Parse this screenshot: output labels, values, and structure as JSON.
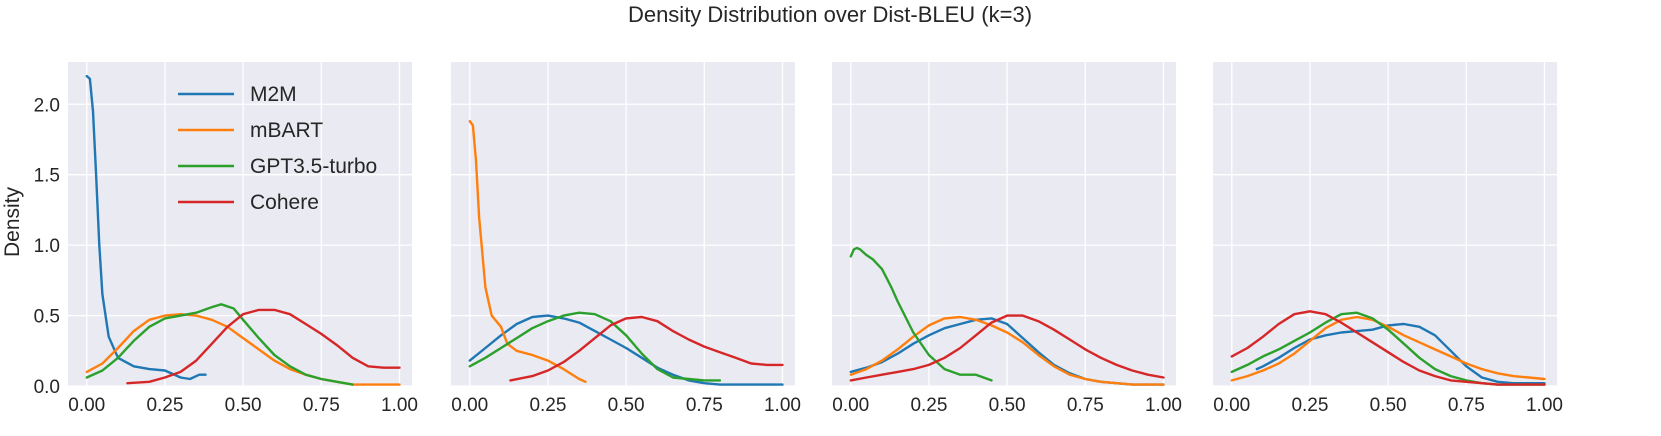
{
  "chart_data": {
    "type": "line",
    "title": "Density Distribution over Dist-BLEU (k=3)",
    "ylabel": "Density",
    "xlabel": "",
    "xlim": [
      -0.06,
      1.04
    ],
    "ylim": [
      0,
      2.3
    ],
    "xticks": [
      "0.00",
      "0.25",
      "0.50",
      "0.75",
      "1.00"
    ],
    "yticks": [
      "0.0",
      "0.5",
      "1.0",
      "1.5",
      "2.0"
    ],
    "xtick_values": [
      0,
      0.25,
      0.5,
      0.75,
      1.0
    ],
    "ytick_values": [
      0,
      0.5,
      1.0,
      1.5,
      2.0
    ],
    "grid": true,
    "legend_position": "top-left",
    "legend": [
      {
        "name": "M2M",
        "color": "#1f77b4"
      },
      {
        "name": "mBART",
        "color": "#ff7f0e"
      },
      {
        "name": "GPT3.5-turbo",
        "color": "#2ca02c"
      },
      {
        "name": "Cohere",
        "color": "#d62728"
      }
    ],
    "panels": [
      {
        "series": [
          {
            "name": "M2M",
            "color": "#1f77b4",
            "x": [
              0.0,
              0.01,
              0.02,
              0.03,
              0.04,
              0.05,
              0.07,
              0.1,
              0.15,
              0.2,
              0.25,
              0.3,
              0.33,
              0.36,
              0.38
            ],
            "y": [
              2.2,
              2.18,
              1.95,
              1.5,
              1.0,
              0.65,
              0.35,
              0.2,
              0.14,
              0.12,
              0.11,
              0.06,
              0.05,
              0.08,
              0.08
            ]
          },
          {
            "name": "mBART",
            "color": "#ff7f0e",
            "x": [
              0.0,
              0.05,
              0.1,
              0.15,
              0.2,
              0.25,
              0.3,
              0.35,
              0.4,
              0.45,
              0.5,
              0.55,
              0.6,
              0.65,
              0.7,
              0.75,
              0.8,
              0.85,
              0.9,
              0.95,
              1.0
            ],
            "y": [
              0.1,
              0.16,
              0.27,
              0.39,
              0.47,
              0.5,
              0.51,
              0.5,
              0.47,
              0.42,
              0.34,
              0.26,
              0.18,
              0.12,
              0.08,
              0.05,
              0.03,
              0.01,
              0.01,
              0.01,
              0.01
            ]
          },
          {
            "name": "GPT3.5-turbo",
            "color": "#2ca02c",
            "x": [
              0.0,
              0.05,
              0.1,
              0.15,
              0.2,
              0.25,
              0.3,
              0.35,
              0.4,
              0.43,
              0.47,
              0.5,
              0.55,
              0.6,
              0.65,
              0.7,
              0.75,
              0.8,
              0.85
            ],
            "y": [
              0.06,
              0.11,
              0.2,
              0.32,
              0.42,
              0.48,
              0.5,
              0.52,
              0.56,
              0.58,
              0.55,
              0.47,
              0.34,
              0.22,
              0.14,
              0.08,
              0.05,
              0.03,
              0.01
            ]
          },
          {
            "name": "Cohere",
            "color": "#d62728",
            "x": [
              0.13,
              0.2,
              0.25,
              0.3,
              0.35,
              0.4,
              0.45,
              0.5,
              0.55,
              0.6,
              0.65,
              0.7,
              0.75,
              0.8,
              0.85,
              0.9,
              0.95,
              1.0
            ],
            "y": [
              0.02,
              0.03,
              0.06,
              0.1,
              0.18,
              0.3,
              0.42,
              0.51,
              0.54,
              0.54,
              0.51,
              0.44,
              0.37,
              0.29,
              0.2,
              0.14,
              0.13,
              0.13
            ]
          }
        ]
      },
      {
        "series": [
          {
            "name": "M2M",
            "color": "#1f77b4",
            "x": [
              0.0,
              0.05,
              0.1,
              0.15,
              0.2,
              0.25,
              0.3,
              0.35,
              0.4,
              0.45,
              0.5,
              0.55,
              0.6,
              0.65,
              0.7,
              0.75,
              0.8,
              0.85,
              0.9,
              0.95,
              1.0
            ],
            "y": [
              0.18,
              0.27,
              0.36,
              0.44,
              0.49,
              0.5,
              0.48,
              0.45,
              0.39,
              0.33,
              0.27,
              0.2,
              0.13,
              0.08,
              0.04,
              0.02,
              0.01,
              0.01,
              0.01,
              0.01,
              0.01
            ]
          },
          {
            "name": "mBART",
            "color": "#ff7f0e",
            "x": [
              0.0,
              0.01,
              0.02,
              0.03,
              0.05,
              0.07,
              0.1,
              0.12,
              0.15,
              0.2,
              0.25,
              0.3,
              0.35,
              0.37
            ],
            "y": [
              1.88,
              1.85,
              1.6,
              1.2,
              0.7,
              0.5,
              0.42,
              0.3,
              0.25,
              0.22,
              0.18,
              0.12,
              0.05,
              0.03
            ]
          },
          {
            "name": "GPT3.5-turbo",
            "color": "#2ca02c",
            "x": [
              0.0,
              0.05,
              0.1,
              0.15,
              0.2,
              0.25,
              0.3,
              0.35,
              0.4,
              0.45,
              0.5,
              0.55,
              0.6,
              0.65,
              0.7,
              0.75,
              0.8
            ],
            "y": [
              0.14,
              0.2,
              0.27,
              0.34,
              0.41,
              0.46,
              0.5,
              0.52,
              0.51,
              0.46,
              0.36,
              0.23,
              0.12,
              0.06,
              0.05,
              0.04,
              0.04
            ]
          },
          {
            "name": "Cohere",
            "color": "#d62728",
            "x": [
              0.13,
              0.2,
              0.25,
              0.3,
              0.35,
              0.4,
              0.45,
              0.5,
              0.55,
              0.6,
              0.65,
              0.7,
              0.75,
              0.8,
              0.85,
              0.9,
              0.95,
              1.0
            ],
            "y": [
              0.04,
              0.07,
              0.11,
              0.17,
              0.25,
              0.34,
              0.43,
              0.48,
              0.49,
              0.46,
              0.39,
              0.33,
              0.28,
              0.24,
              0.2,
              0.16,
              0.15,
              0.15
            ]
          }
        ]
      },
      {
        "series": [
          {
            "name": "M2M",
            "color": "#1f77b4",
            "x": [
              0.0,
              0.05,
              0.1,
              0.15,
              0.2,
              0.25,
              0.3,
              0.35,
              0.4,
              0.45,
              0.5,
              0.55,
              0.6,
              0.65,
              0.7,
              0.75,
              0.8,
              0.85,
              0.9,
              0.95,
              1.0
            ],
            "y": [
              0.1,
              0.13,
              0.17,
              0.23,
              0.3,
              0.36,
              0.41,
              0.44,
              0.47,
              0.48,
              0.44,
              0.34,
              0.24,
              0.15,
              0.09,
              0.05,
              0.03,
              0.02,
              0.01,
              0.01,
              0.01
            ]
          },
          {
            "name": "mBART",
            "color": "#ff7f0e",
            "x": [
              0.0,
              0.05,
              0.1,
              0.15,
              0.2,
              0.25,
              0.3,
              0.35,
              0.4,
              0.45,
              0.5,
              0.55,
              0.6,
              0.65,
              0.7,
              0.75,
              0.8,
              0.85,
              0.9,
              0.95,
              1.0
            ],
            "y": [
              0.08,
              0.12,
              0.18,
              0.26,
              0.35,
              0.43,
              0.48,
              0.49,
              0.47,
              0.43,
              0.38,
              0.31,
              0.22,
              0.14,
              0.08,
              0.05,
              0.03,
              0.02,
              0.01,
              0.01,
              0.01
            ]
          },
          {
            "name": "GPT3.5-turbo",
            "color": "#2ca02c",
            "x": [
              0.0,
              0.01,
              0.02,
              0.03,
              0.05,
              0.07,
              0.1,
              0.13,
              0.15,
              0.2,
              0.25,
              0.3,
              0.35,
              0.4,
              0.45
            ],
            "y": [
              0.92,
              0.97,
              0.98,
              0.97,
              0.93,
              0.9,
              0.83,
              0.7,
              0.6,
              0.38,
              0.22,
              0.12,
              0.08,
              0.08,
              0.04
            ]
          },
          {
            "name": "Cohere",
            "color": "#d62728",
            "x": [
              0.0,
              0.05,
              0.1,
              0.15,
              0.2,
              0.25,
              0.3,
              0.35,
              0.4,
              0.45,
              0.5,
              0.55,
              0.6,
              0.65,
              0.7,
              0.75,
              0.8,
              0.85,
              0.9,
              0.95,
              1.0
            ],
            "y": [
              0.04,
              0.06,
              0.08,
              0.1,
              0.12,
              0.15,
              0.2,
              0.27,
              0.36,
              0.45,
              0.5,
              0.5,
              0.46,
              0.4,
              0.33,
              0.26,
              0.2,
              0.15,
              0.11,
              0.08,
              0.06
            ]
          }
        ]
      },
      {
        "series": [
          {
            "name": "M2M",
            "color": "#1f77b4",
            "x": [
              0.08,
              0.1,
              0.15,
              0.2,
              0.25,
              0.3,
              0.35,
              0.4,
              0.45,
              0.5,
              0.55,
              0.6,
              0.65,
              0.7,
              0.75,
              0.8,
              0.85,
              0.9,
              0.95,
              1.0
            ],
            "y": [
              0.12,
              0.14,
              0.2,
              0.27,
              0.33,
              0.36,
              0.38,
              0.39,
              0.4,
              0.43,
              0.44,
              0.42,
              0.36,
              0.25,
              0.14,
              0.06,
              0.03,
              0.02,
              0.02,
              0.02
            ]
          },
          {
            "name": "mBART",
            "color": "#ff7f0e",
            "x": [
              0.0,
              0.05,
              0.1,
              0.15,
              0.2,
              0.25,
              0.3,
              0.35,
              0.4,
              0.45,
              0.5,
              0.55,
              0.6,
              0.65,
              0.7,
              0.75,
              0.8,
              0.85,
              0.9,
              0.95,
              1.0
            ],
            "y": [
              0.04,
              0.07,
              0.11,
              0.16,
              0.23,
              0.32,
              0.41,
              0.47,
              0.49,
              0.47,
              0.42,
              0.36,
              0.31,
              0.26,
              0.21,
              0.16,
              0.12,
              0.09,
              0.07,
              0.06,
              0.05
            ]
          },
          {
            "name": "GPT3.5-turbo",
            "color": "#2ca02c",
            "x": [
              0.0,
              0.05,
              0.1,
              0.15,
              0.2,
              0.25,
              0.3,
              0.35,
              0.4,
              0.45,
              0.5,
              0.55,
              0.6,
              0.65,
              0.7,
              0.75,
              0.8,
              0.85,
              0.9,
              0.95,
              1.0
            ],
            "y": [
              0.1,
              0.15,
              0.21,
              0.26,
              0.32,
              0.38,
              0.45,
              0.51,
              0.52,
              0.48,
              0.4,
              0.3,
              0.2,
              0.12,
              0.07,
              0.04,
              0.02,
              0.01,
              0.01,
              0.01,
              0.01
            ]
          },
          {
            "name": "Cohere",
            "color": "#d62728",
            "x": [
              0.0,
              0.05,
              0.1,
              0.15,
              0.2,
              0.25,
              0.3,
              0.35,
              0.4,
              0.45,
              0.5,
              0.55,
              0.6,
              0.65,
              0.7,
              0.75,
              0.8,
              0.85,
              0.9,
              0.95,
              1.0
            ],
            "y": [
              0.21,
              0.27,
              0.35,
              0.44,
              0.51,
              0.53,
              0.51,
              0.45,
              0.38,
              0.31,
              0.24,
              0.17,
              0.11,
              0.07,
              0.04,
              0.03,
              0.02,
              0.01,
              0.01,
              0.01,
              0.01
            ]
          }
        ]
      }
    ]
  }
}
